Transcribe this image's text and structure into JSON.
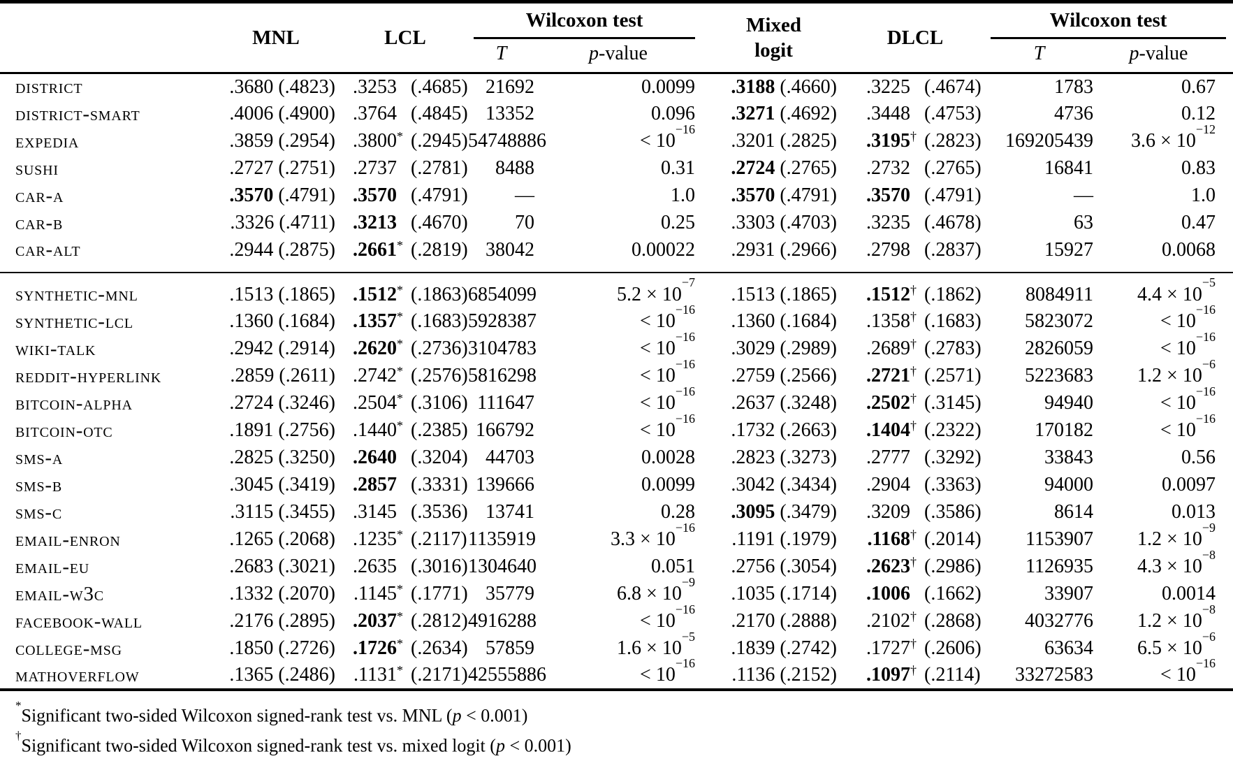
{
  "table": {
    "headers": {
      "mnl": "MNL",
      "lcl": "LCL",
      "wilcoxon1": "Wilcoxon test",
      "mixed_line1": "Mixed",
      "mixed_line2": "logit",
      "dlcl": "DLCL",
      "wilcoxon2": "Wilcoxon test",
      "t": "T",
      "p_italic": "p",
      "p_rest": "-value"
    },
    "rows": [
      {
        "label": "district",
        "group": 1,
        "mnl_v": ".3680",
        "mnl_sd": "(.4823)",
        "mnl_bold": false,
        "lcl_v": ".3253",
        "lcl_m": "",
        "lcl_sd": "(.4685)",
        "lcl_bold": false,
        "t1": "21692",
        "p1": "0.0099",
        "mix_v": ".3188",
        "mix_sd": "(.4660)",
        "mix_bold": true,
        "dlcl_v": ".3225",
        "dlcl_m": "",
        "dlcl_sd": "(.4674)",
        "dlcl_bold": false,
        "t2": "1783",
        "p2": "0.67"
      },
      {
        "label": "district-smart",
        "group": 1,
        "mnl_v": ".4006",
        "mnl_sd": "(.4900)",
        "mnl_bold": false,
        "lcl_v": ".3764",
        "lcl_m": "",
        "lcl_sd": "(.4845)",
        "lcl_bold": false,
        "t1": "13352",
        "p1": "0.096",
        "mix_v": ".3271",
        "mix_sd": "(.4692)",
        "mix_bold": true,
        "dlcl_v": ".3448",
        "dlcl_m": "",
        "dlcl_sd": "(.4753)",
        "dlcl_bold": false,
        "t2": "4736",
        "p2": "0.12"
      },
      {
        "label": "expedia",
        "group": 1,
        "mnl_v": ".3859",
        "mnl_sd": "(.2954)",
        "mnl_bold": false,
        "lcl_v": ".3800",
        "lcl_m": "*",
        "lcl_sd": "(.2945)",
        "lcl_bold": false,
        "t1": "54748886",
        "p1": "< 10^−16",
        "mix_v": ".3201",
        "mix_sd": "(.2825)",
        "mix_bold": false,
        "dlcl_v": ".3195",
        "dlcl_m": "†",
        "dlcl_sd": "(.2823)",
        "dlcl_bold": true,
        "t2": "169205439",
        "p2": "3.6 × 10^−12"
      },
      {
        "label": "sushi",
        "group": 1,
        "mnl_v": ".2727",
        "mnl_sd": "(.2751)",
        "mnl_bold": false,
        "lcl_v": ".2737",
        "lcl_m": "",
        "lcl_sd": "(.2781)",
        "lcl_bold": false,
        "t1": "8488",
        "p1": "0.31",
        "mix_v": ".2724",
        "mix_sd": "(.2765)",
        "mix_bold": true,
        "dlcl_v": ".2732",
        "dlcl_m": "",
        "dlcl_sd": "(.2765)",
        "dlcl_bold": false,
        "t2": "16841",
        "p2": "0.83"
      },
      {
        "label": "car-a",
        "group": 1,
        "mnl_v": ".3570",
        "mnl_sd": "(.4791)",
        "mnl_bold": true,
        "lcl_v": ".3570",
        "lcl_m": "",
        "lcl_sd": "(.4791)",
        "lcl_bold": true,
        "t1": "—",
        "p1": "1.0",
        "mix_v": ".3570",
        "mix_sd": "(.4791)",
        "mix_bold": true,
        "dlcl_v": ".3570",
        "dlcl_m": "",
        "dlcl_sd": "(.4791)",
        "dlcl_bold": true,
        "t2": "—",
        "p2": "1.0"
      },
      {
        "label": "car-b",
        "group": 1,
        "mnl_v": ".3326",
        "mnl_sd": "(.4711)",
        "mnl_bold": false,
        "lcl_v": ".3213",
        "lcl_m": "",
        "lcl_sd": "(.4670)",
        "lcl_bold": true,
        "t1": "70",
        "p1": "0.25",
        "mix_v": ".3303",
        "mix_sd": "(.4703)",
        "mix_bold": false,
        "dlcl_v": ".3235",
        "dlcl_m": "",
        "dlcl_sd": "(.4678)",
        "dlcl_bold": false,
        "t2": "63",
        "p2": "0.47"
      },
      {
        "label": "car-alt",
        "group": 1,
        "mnl_v": ".2944",
        "mnl_sd": "(.2875)",
        "mnl_bold": false,
        "lcl_v": ".2661",
        "lcl_m": "*",
        "lcl_sd": "(.2819)",
        "lcl_bold": true,
        "t1": "38042",
        "p1": "0.00022",
        "mix_v": ".2931",
        "mix_sd": "(.2966)",
        "mix_bold": false,
        "dlcl_v": ".2798",
        "dlcl_m": "",
        "dlcl_sd": "(.2837)",
        "dlcl_bold": false,
        "t2": "15927",
        "p2": "0.0068"
      },
      {
        "label": "synthetic-mnl",
        "group": 2,
        "mnl_v": ".1513",
        "mnl_sd": "(.1865)",
        "mnl_bold": false,
        "lcl_v": ".1512",
        "lcl_m": "*",
        "lcl_sd": "(.1863)",
        "lcl_bold": true,
        "t1": "6854099",
        "p1": "5.2 × 10^−7",
        "mix_v": ".1513",
        "mix_sd": "(.1865)",
        "mix_bold": false,
        "dlcl_v": ".1512",
        "dlcl_m": "†",
        "dlcl_sd": "(.1862)",
        "dlcl_bold": true,
        "t2": "8084911",
        "p2": "4.4 × 10^−5"
      },
      {
        "label": "synthetic-lcl",
        "group": 2,
        "mnl_v": ".1360",
        "mnl_sd": "(.1684)",
        "mnl_bold": false,
        "lcl_v": ".1357",
        "lcl_m": "*",
        "lcl_sd": "(.1683)",
        "lcl_bold": true,
        "t1": "5928387",
        "p1": "< 10^−16",
        "mix_v": ".1360",
        "mix_sd": "(.1684)",
        "mix_bold": false,
        "dlcl_v": ".1358",
        "dlcl_m": "†",
        "dlcl_sd": "(.1683)",
        "dlcl_bold": false,
        "t2": "5823072",
        "p2": "< 10^−16"
      },
      {
        "label": "wiki-talk",
        "group": 2,
        "mnl_v": ".2942",
        "mnl_sd": "(.2914)",
        "mnl_bold": false,
        "lcl_v": ".2620",
        "lcl_m": "*",
        "lcl_sd": "(.2736)",
        "lcl_bold": true,
        "t1": "3104783",
        "p1": "< 10^−16",
        "mix_v": ".3029",
        "mix_sd": "(.2989)",
        "mix_bold": false,
        "dlcl_v": ".2689",
        "dlcl_m": "†",
        "dlcl_sd": "(.2783)",
        "dlcl_bold": false,
        "t2": "2826059",
        "p2": "< 10^−16"
      },
      {
        "label": "reddit-hyperlink",
        "group": 2,
        "mnl_v": ".2859",
        "mnl_sd": "(.2611)",
        "mnl_bold": false,
        "lcl_v": ".2742",
        "lcl_m": "*",
        "lcl_sd": "(.2576)",
        "lcl_bold": false,
        "t1": "5816298",
        "p1": "< 10^−16",
        "mix_v": ".2759",
        "mix_sd": "(.2566)",
        "mix_bold": false,
        "dlcl_v": ".2721",
        "dlcl_m": "†",
        "dlcl_sd": "(.2571)",
        "dlcl_bold": true,
        "t2": "5223683",
        "p2": "1.2 × 10^−6"
      },
      {
        "label": "bitcoin-alpha",
        "group": 2,
        "mnl_v": ".2724",
        "mnl_sd": "(.3246)",
        "mnl_bold": false,
        "lcl_v": ".2504",
        "lcl_m": "*",
        "lcl_sd": "(.3106)",
        "lcl_bold": false,
        "t1": "111647",
        "p1": "< 10^−16",
        "mix_v": ".2637",
        "mix_sd": "(.3248)",
        "mix_bold": false,
        "dlcl_v": ".2502",
        "dlcl_m": "†",
        "dlcl_sd": "(.3145)",
        "dlcl_bold": true,
        "t2": "94940",
        "p2": "< 10^−16"
      },
      {
        "label": "bitcoin-otc",
        "group": 2,
        "mnl_v": ".1891",
        "mnl_sd": "(.2756)",
        "mnl_bold": false,
        "lcl_v": ".1440",
        "lcl_m": "*",
        "lcl_sd": "(.2385)",
        "lcl_bold": false,
        "t1": "166792",
        "p1": "< 10^−16",
        "mix_v": ".1732",
        "mix_sd": "(.2663)",
        "mix_bold": false,
        "dlcl_v": ".1404",
        "dlcl_m": "†",
        "dlcl_sd": "(.2322)",
        "dlcl_bold": true,
        "t2": "170182",
        "p2": "< 10^−16"
      },
      {
        "label": "sms-a",
        "group": 2,
        "mnl_v": ".2825",
        "mnl_sd": "(.3250)",
        "mnl_bold": false,
        "lcl_v": ".2640",
        "lcl_m": "",
        "lcl_sd": "(.3204)",
        "lcl_bold": true,
        "t1": "44703",
        "p1": "0.0028",
        "mix_v": ".2823",
        "mix_sd": "(.3273)",
        "mix_bold": false,
        "dlcl_v": ".2777",
        "dlcl_m": "",
        "dlcl_sd": "(.3292)",
        "dlcl_bold": false,
        "t2": "33843",
        "p2": "0.56"
      },
      {
        "label": "sms-b",
        "group": 2,
        "mnl_v": ".3045",
        "mnl_sd": "(.3419)",
        "mnl_bold": false,
        "lcl_v": ".2857",
        "lcl_m": "",
        "lcl_sd": "(.3331)",
        "lcl_bold": true,
        "t1": "139666",
        "p1": "0.0099",
        "mix_v": ".3042",
        "mix_sd": "(.3434)",
        "mix_bold": false,
        "dlcl_v": ".2904",
        "dlcl_m": "",
        "dlcl_sd": "(.3363)",
        "dlcl_bold": false,
        "t2": "94000",
        "p2": "0.0097"
      },
      {
        "label": "sms-c",
        "group": 2,
        "mnl_v": ".3115",
        "mnl_sd": "(.3455)",
        "mnl_bold": false,
        "lcl_v": ".3145",
        "lcl_m": "",
        "lcl_sd": "(.3536)",
        "lcl_bold": false,
        "t1": "13741",
        "p1": "0.28",
        "mix_v": ".3095",
        "mix_sd": "(.3479)",
        "mix_bold": true,
        "dlcl_v": ".3209",
        "dlcl_m": "",
        "dlcl_sd": "(.3586)",
        "dlcl_bold": false,
        "t2": "8614",
        "p2": "0.013"
      },
      {
        "label": "email-enron",
        "group": 2,
        "mnl_v": ".1265",
        "mnl_sd": "(.2068)",
        "mnl_bold": false,
        "lcl_v": ".1235",
        "lcl_m": "*",
        "lcl_sd": "(.2117)",
        "lcl_bold": false,
        "t1": "1135919",
        "p1": "3.3 × 10^−16",
        "mix_v": ".1191",
        "mix_sd": "(.1979)",
        "mix_bold": false,
        "dlcl_v": ".1168",
        "dlcl_m": "†",
        "dlcl_sd": "(.2014)",
        "dlcl_bold": true,
        "t2": "1153907",
        "p2": "1.2 × 10^−9"
      },
      {
        "label": "email-eu",
        "group": 2,
        "mnl_v": ".2683",
        "mnl_sd": "(.3021)",
        "mnl_bold": false,
        "lcl_v": ".2635",
        "lcl_m": "",
        "lcl_sd": "(.3016)",
        "lcl_bold": false,
        "t1": "1304640",
        "p1": "0.051",
        "mix_v": ".2756",
        "mix_sd": "(.3054)",
        "mix_bold": false,
        "dlcl_v": ".2623",
        "dlcl_m": "†",
        "dlcl_sd": "(.2986)",
        "dlcl_bold": true,
        "t2": "1126935",
        "p2": "4.3 × 10^−8"
      },
      {
        "label": "email-w3c",
        "group": 2,
        "mnl_v": ".1332",
        "mnl_sd": "(.2070)",
        "mnl_bold": false,
        "lcl_v": ".1145",
        "lcl_m": "*",
        "lcl_sd": "(.1771)",
        "lcl_bold": false,
        "t1": "35779",
        "p1": "6.8 × 10^−9",
        "mix_v": ".1035",
        "mix_sd": "(.1714)",
        "mix_bold": false,
        "dlcl_v": ".1006",
        "dlcl_m": "",
        "dlcl_sd": "(.1662)",
        "dlcl_bold": true,
        "t2": "33907",
        "p2": "0.0014"
      },
      {
        "label": "facebook-wall",
        "group": 2,
        "mnl_v": ".2176",
        "mnl_sd": "(.2895)",
        "mnl_bold": false,
        "lcl_v": ".2037",
        "lcl_m": "*",
        "lcl_sd": "(.2812)",
        "lcl_bold": true,
        "t1": "4916288",
        "p1": "< 10^−16",
        "mix_v": ".2170",
        "mix_sd": "(.2888)",
        "mix_bold": false,
        "dlcl_v": ".2102",
        "dlcl_m": "†",
        "dlcl_sd": "(.2868)",
        "dlcl_bold": false,
        "t2": "4032776",
        "p2": "1.2 × 10^−8"
      },
      {
        "label": "college-msg",
        "group": 2,
        "mnl_v": ".1850",
        "mnl_sd": "(.2726)",
        "mnl_bold": false,
        "lcl_v": ".1726",
        "lcl_m": "*",
        "lcl_sd": "(.2634)",
        "lcl_bold": true,
        "t1": "57859",
        "p1": "1.6 × 10^−5",
        "mix_v": ".1839",
        "mix_sd": "(.2742)",
        "mix_bold": false,
        "dlcl_v": ".1727",
        "dlcl_m": "†",
        "dlcl_sd": "(.2606)",
        "dlcl_bold": false,
        "t2": "63634",
        "p2": "6.5 × 10^−6"
      },
      {
        "label": "mathoverflow",
        "group": 2,
        "mnl_v": ".1365",
        "mnl_sd": "(.2486)",
        "mnl_bold": false,
        "lcl_v": ".1131",
        "lcl_m": "*",
        "lcl_sd": "(.2171)",
        "lcl_bold": false,
        "t1": "42555886",
        "p1": "< 10^−16",
        "mix_v": ".1136",
        "mix_sd": "(.2152)",
        "mix_bold": false,
        "dlcl_v": ".1097",
        "dlcl_m": "†",
        "dlcl_sd": "(.2114)",
        "dlcl_bold": true,
        "t2": "33272583",
        "p2": "< 10^−16"
      }
    ]
  },
  "footnotes": [
    {
      "marker": "*",
      "text": "Significant two-sided Wilcoxon signed-rank test vs. MNL (",
      "p": "p",
      "tail": " < 0.001)"
    },
    {
      "marker": "†",
      "text": "Significant two-sided Wilcoxon signed-rank test vs. mixed logit (",
      "p": "p",
      "tail": " < 0.001)"
    }
  ],
  "colors": {
    "text": "#000000",
    "background": "#ffffff",
    "rule": "#000000"
  }
}
